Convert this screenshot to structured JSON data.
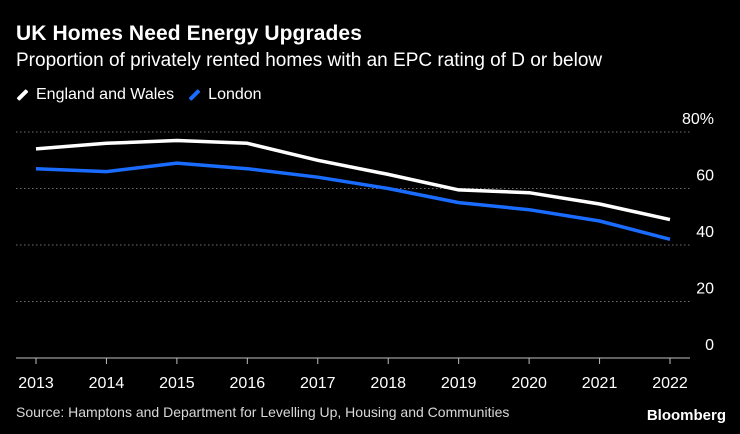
{
  "title": "UK Homes Need Energy Upgrades",
  "subtitle": "Proportion of privately rented homes with an EPC rating of D or below",
  "legend": [
    {
      "name": "England and Wales",
      "color": "#ffffff"
    },
    {
      "name": "London",
      "color": "#1a6cff"
    }
  ],
  "chart_data": {
    "type": "line",
    "title": "UK Homes Need Energy Upgrades",
    "subtitle": "Proportion of privately rented homes with an EPC rating of D or below",
    "x": [
      "2013",
      "2014",
      "2015",
      "2016",
      "2017",
      "2018",
      "2019",
      "2020",
      "2021",
      "2022"
    ],
    "series": [
      {
        "name": "England and Wales",
        "color": "#ffffff",
        "values": [
          74,
          76,
          77,
          76,
          70,
          65,
          59.5,
          58.5,
          54.5,
          49
        ]
      },
      {
        "name": "London",
        "color": "#1a6cff",
        "values": [
          67,
          66,
          69,
          67,
          64,
          60,
          55,
          52.5,
          48.5,
          42
        ]
      }
    ],
    "yticks": [
      0,
      20,
      40,
      60,
      80
    ],
    "ytick_labels": [
      "0",
      "20",
      "40",
      "60",
      "80%"
    ],
    "ylim": [
      0,
      80
    ],
    "xlabel": "",
    "ylabel": "",
    "grid": true,
    "legend_position": "top-left"
  },
  "source": "Source: Hamptons and Department for Levelling Up, Housing and Communities",
  "brand": "Bloomberg"
}
